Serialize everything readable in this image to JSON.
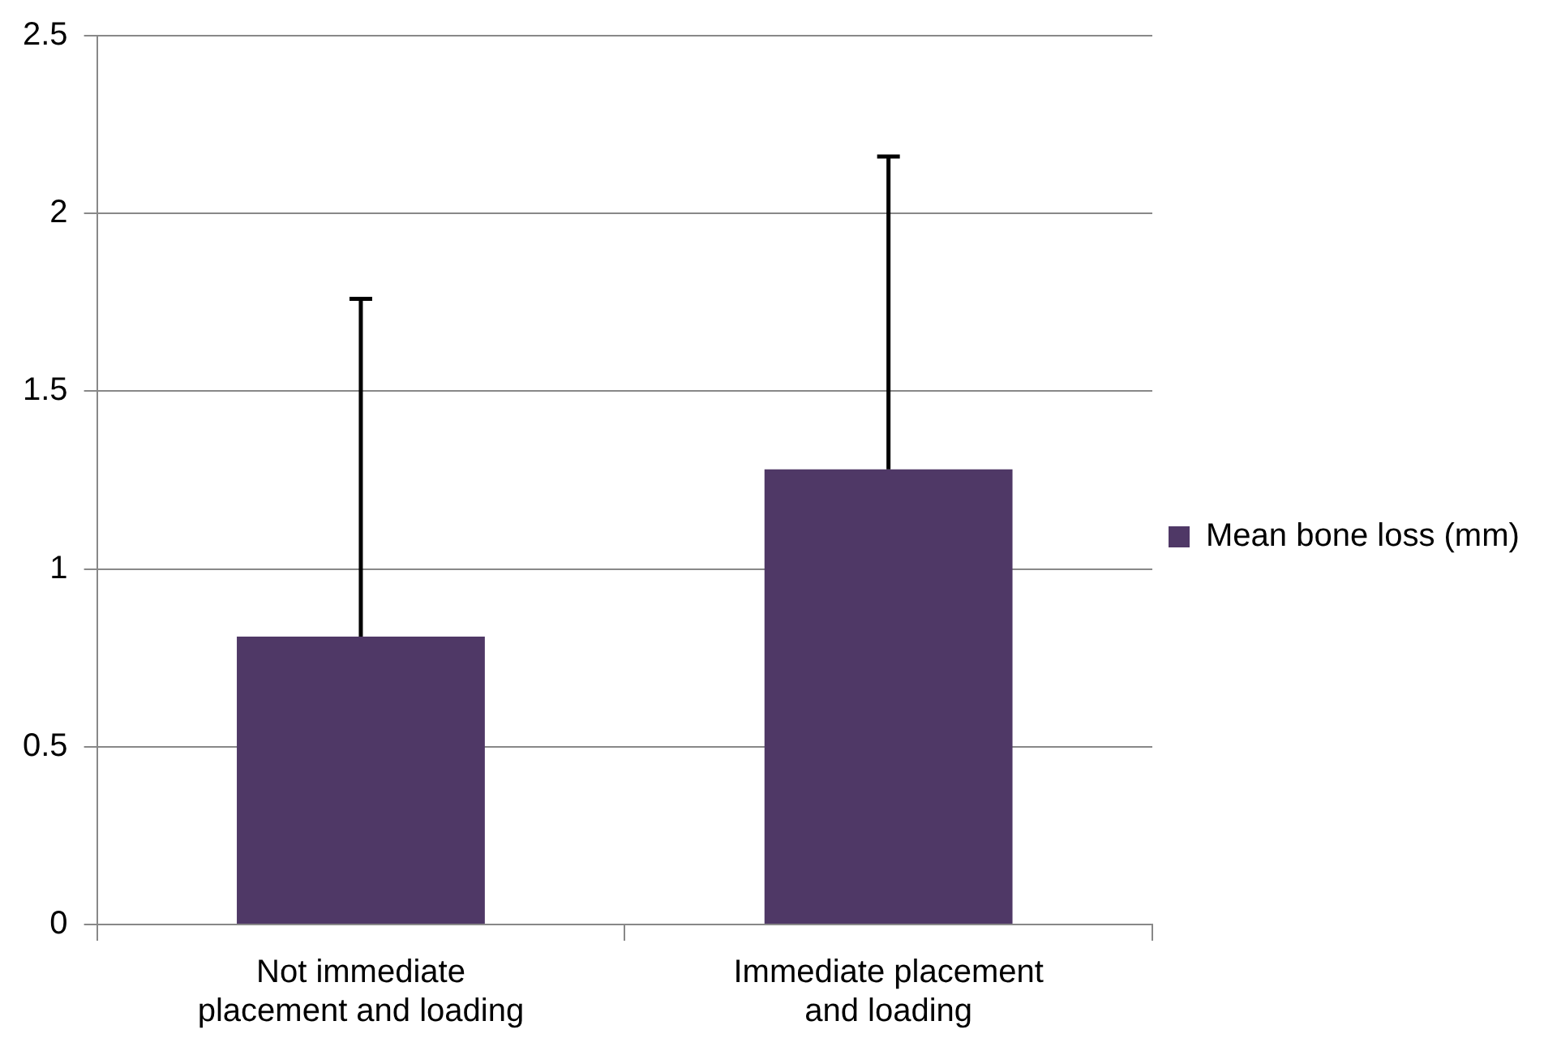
{
  "chart_data": {
    "type": "bar",
    "categories": [
      "Not immediate placement and loading",
      "Immediate placement and loading"
    ],
    "series": [
      {
        "name": "Mean bone loss (mm)",
        "color": "#4f3866",
        "values": [
          0.81,
          1.28
        ],
        "errors": [
          [
            0.81,
            1.76
          ],
          [
            1.28,
            2.16
          ]
        ]
      }
    ],
    "ylim": [
      0,
      2.5
    ],
    "yticks": [
      0,
      0.5,
      1,
      1.5,
      2,
      2.5
    ],
    "grid": "y",
    "legend": "right"
  }
}
